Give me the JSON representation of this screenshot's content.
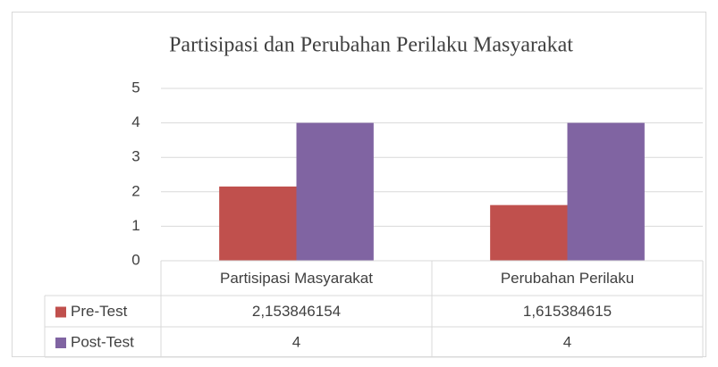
{
  "chart_data": {
    "type": "bar",
    "title": "Partisipasi dan Perubahan Perilaku Masyarakat",
    "categories": [
      "Partisipasi Masyarakat",
      "Perubahan Perilaku"
    ],
    "series": [
      {
        "name": "Pre-Test",
        "color": "#c0504d",
        "values": [
          2.153846154,
          1.615384615
        ],
        "value_labels": [
          "2,153846154",
          "1,615384615"
        ]
      },
      {
        "name": "Post-Test",
        "color": "#8064a2",
        "values": [
          4,
          4
        ]
      }
    ],
    "ylim": [
      0,
      5
    ],
    "yticks": [
      0,
      1,
      2,
      3,
      4,
      5
    ],
    "grid": true
  }
}
